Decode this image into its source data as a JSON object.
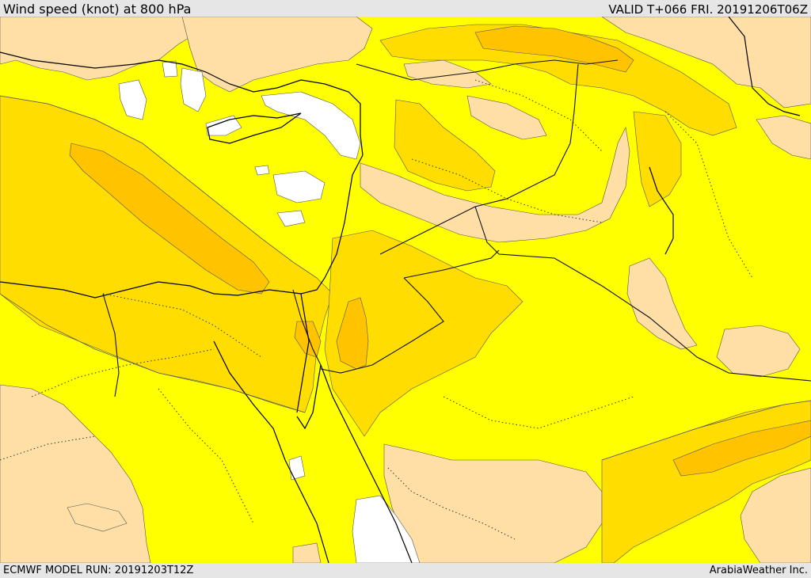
{
  "header": {
    "title": "Wind speed (knot) at 800 hPa",
    "valid": "VALID T+066 FRI. 20191206T06Z"
  },
  "footer": {
    "model_run": "ECMWF MODEL RUN: 20191203T12Z",
    "credit": "ArabiaWeather Inc."
  },
  "map": {
    "variable": "wind speed",
    "level_hpa": 800,
    "colors": {
      "lowest": "#ffffff",
      "low": "#ffdfa6",
      "moderate": "#ffff00",
      "high": "#ffdd00",
      "higher": "#ffc300",
      "highest": "#ffb000",
      "coastline": "#000000",
      "border": "#000000",
      "contour": "#444444"
    }
  }
}
